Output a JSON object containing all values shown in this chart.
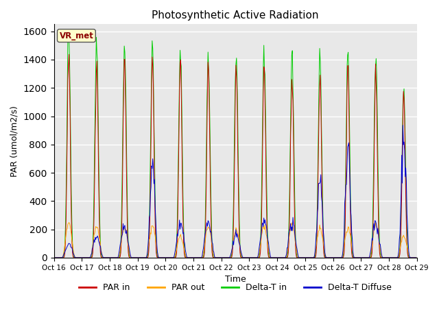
{
  "title": "Photosynthetic Active Radiation",
  "xlabel": "Time",
  "ylabel": "PAR (umol/m2/s)",
  "ylim": [
    0,
    1650
  ],
  "background_color": "#e8e8e8",
  "legend_labels": [
    "PAR in",
    "PAR out",
    "Delta-T in",
    "Delta-T Diffuse"
  ],
  "legend_colors": [
    "#cc0000",
    "#ffa500",
    "#00cc00",
    "#0000cc"
  ],
  "vr_met_label": "VR_met",
  "xtick_labels": [
    "Oct 16",
    "Oct 17",
    "Oct 18",
    "Oct 19",
    "Oct 20",
    "Oct 21",
    "Oct 22",
    "Oct 23",
    "Oct 24",
    "Oct 25",
    "Oct 26",
    "Oct 27",
    "Oct 28",
    "Oct 29"
  ],
  "grid_color": "#d0d0d0",
  "grid_yticks": [
    0,
    200,
    400,
    600,
    800,
    1000,
    1200,
    1400,
    1600
  ]
}
